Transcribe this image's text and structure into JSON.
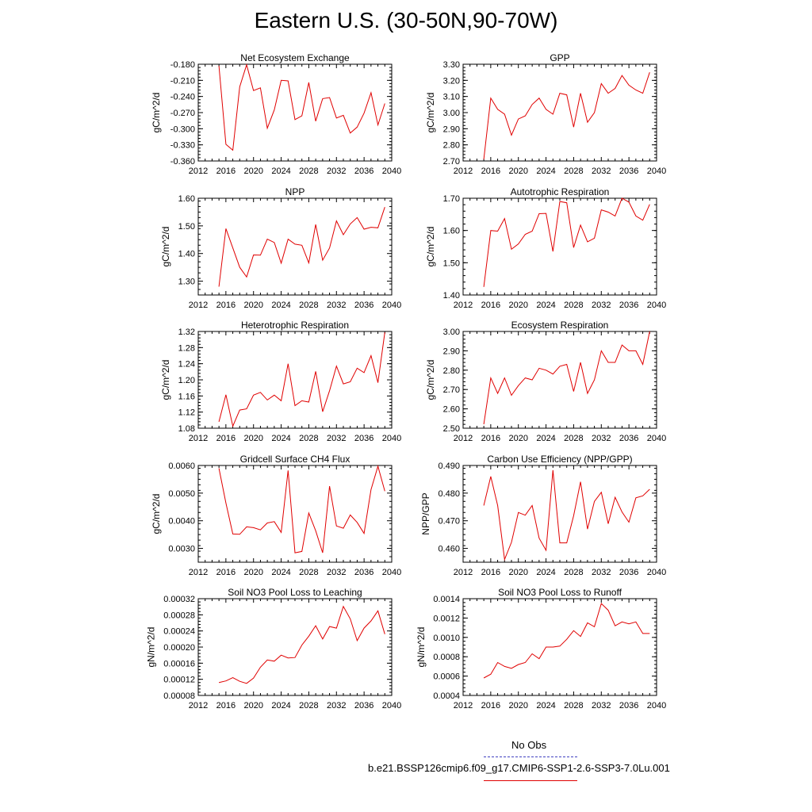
{
  "title": "Eastern U.S. (30-50N,90-70W)",
  "legend": {
    "obs_label": "No Obs",
    "obs_color": "#4040c0",
    "model_label": "b.e21.BSSP126cmip6.f09_g17.CMIP6-SSP1-2.6-SSP3-7.0Lu.001",
    "model_color": "#e00000"
  },
  "chart_data": [
    {
      "type": "line",
      "title": "Net Ecosystem Exchange",
      "ylabel": "gC/m^2/d",
      "xlim": [
        2012,
        2040
      ],
      "xticks": [
        "2012",
        "2016",
        "2020",
        "2024",
        "2028",
        "2032",
        "2036",
        "2040"
      ],
      "ylim": [
        -0.36,
        -0.18
      ],
      "yticks": [
        "-0.180",
        "-0.210",
        "-0.240",
        "-0.270",
        "-0.300",
        "-0.330",
        "-0.360"
      ],
      "series": [
        {
          "color": "#e00000",
          "x": [
            2015,
            2016,
            2017,
            2018,
            2019,
            2020,
            2021,
            2022,
            2023,
            2024,
            2025,
            2026,
            2027,
            2028,
            2029,
            2030,
            2031,
            2032,
            2033,
            2034,
            2035,
            2036,
            2037,
            2038,
            2039
          ],
          "y": [
            -0.183,
            -0.329,
            -0.34,
            -0.222,
            -0.181,
            -0.229,
            -0.224,
            -0.299,
            -0.265,
            -0.21,
            -0.211,
            -0.283,
            -0.276,
            -0.214,
            -0.286,
            -0.244,
            -0.242,
            -0.28,
            -0.275,
            -0.308,
            -0.297,
            -0.271,
            -0.233,
            -0.293,
            -0.253
          ]
        }
      ]
    },
    {
      "type": "line",
      "title": "GPP",
      "ylabel": "gC/m^2/d",
      "xlim": [
        2012,
        2040
      ],
      "xticks": [
        "2012",
        "2016",
        "2020",
        "2024",
        "2028",
        "2032",
        "2036",
        "2040"
      ],
      "ylim": [
        2.7,
        3.3
      ],
      "yticks": [
        "3.30",
        "3.20",
        "3.10",
        "3.00",
        "2.90",
        "2.80",
        "2.70"
      ],
      "series": [
        {
          "color": "#e00000",
          "x": [
            2015,
            2016,
            2017,
            2018,
            2019,
            2020,
            2021,
            2022,
            2023,
            2024,
            2025,
            2026,
            2027,
            2028,
            2029,
            2030,
            2031,
            2032,
            2033,
            2034,
            2035,
            2036,
            2037,
            2038,
            2039
          ],
          "y": [
            2.71,
            3.09,
            3.02,
            2.99,
            2.86,
            2.96,
            2.98,
            3.05,
            3.09,
            3.02,
            2.99,
            3.12,
            3.11,
            2.91,
            3.12,
            2.94,
            3.0,
            3.18,
            3.12,
            3.15,
            3.23,
            3.17,
            3.14,
            3.12,
            3.25
          ]
        }
      ]
    },
    {
      "type": "line",
      "title": "NPP",
      "ylabel": "gC/m^2/d",
      "xlim": [
        2012,
        2040
      ],
      "xticks": [
        "2012",
        "2016",
        "2020",
        "2024",
        "2028",
        "2032",
        "2036",
        "2040"
      ],
      "ylim": [
        1.25,
        1.6
      ],
      "yticks": [
        "1.60",
        "1.50",
        "1.40",
        "1.30"
      ],
      "series": [
        {
          "color": "#e00000",
          "x": [
            2015,
            2016,
            2017,
            2018,
            2019,
            2020,
            2021,
            2022,
            2023,
            2024,
            2025,
            2026,
            2027,
            2028,
            2029,
            2030,
            2031,
            2032,
            2033,
            2034,
            2035,
            2036,
            2037,
            2038,
            2039
          ],
          "y": [
            1.28,
            1.49,
            1.42,
            1.35,
            1.315,
            1.395,
            1.394,
            1.452,
            1.44,
            1.365,
            1.452,
            1.434,
            1.43,
            1.366,
            1.505,
            1.376,
            1.42,
            1.518,
            1.468,
            1.507,
            1.53,
            1.488,
            1.495,
            1.493,
            1.568
          ]
        }
      ]
    },
    {
      "type": "line",
      "title": "Autotrophic Respiration",
      "ylabel": "gC/m^2/d",
      "xlim": [
        2012,
        2040
      ],
      "xticks": [
        "2012",
        "2016",
        "2020",
        "2024",
        "2028",
        "2032",
        "2036",
        "2040"
      ],
      "ylim": [
        1.4,
        1.7
      ],
      "yticks": [
        "1.70",
        "1.60",
        "1.50",
        "1.40"
      ],
      "series": [
        {
          "color": "#e00000",
          "x": [
            2015,
            2016,
            2017,
            2018,
            2019,
            2020,
            2021,
            2022,
            2023,
            2024,
            2025,
            2026,
            2027,
            2028,
            2029,
            2030,
            2031,
            2032,
            2033,
            2034,
            2035,
            2036,
            2037,
            2038,
            2039
          ],
          "y": [
            1.425,
            1.6,
            1.598,
            1.637,
            1.542,
            1.558,
            1.588,
            1.598,
            1.652,
            1.653,
            1.535,
            1.69,
            1.686,
            1.547,
            1.617,
            1.565,
            1.576,
            1.664,
            1.657,
            1.645,
            1.7,
            1.688,
            1.645,
            1.632,
            1.681
          ]
        }
      ]
    },
    {
      "type": "line",
      "title": "Heterotrophic Respiration",
      "ylabel": "gC/m^2/d",
      "xlim": [
        2012,
        2040
      ],
      "xticks": [
        "2012",
        "2016",
        "2020",
        "2024",
        "2028",
        "2032",
        "2036",
        "2040"
      ],
      "ylim": [
        1.08,
        1.32
      ],
      "yticks": [
        "1.32",
        "1.28",
        "1.24",
        "1.20",
        "1.16",
        "1.12",
        "1.08"
      ],
      "series": [
        {
          "color": "#e00000",
          "x": [
            2015,
            2016,
            2017,
            2018,
            2019,
            2020,
            2021,
            2022,
            2023,
            2024,
            2025,
            2026,
            2027,
            2028,
            2029,
            2030,
            2031,
            2032,
            2033,
            2034,
            2035,
            2036,
            2037,
            2038,
            2039
          ],
          "y": [
            1.096,
            1.163,
            1.085,
            1.125,
            1.128,
            1.162,
            1.169,
            1.15,
            1.162,
            1.148,
            1.24,
            1.136,
            1.148,
            1.145,
            1.221,
            1.121,
            1.173,
            1.234,
            1.19,
            1.195,
            1.229,
            1.218,
            1.26,
            1.193,
            1.318
          ]
        }
      ]
    },
    {
      "type": "line",
      "title": "Ecosystem Respiration",
      "ylabel": "gC/m^2/d",
      "xlim": [
        2012,
        2040
      ],
      "xticks": [
        "2012",
        "2016",
        "2020",
        "2024",
        "2028",
        "2032",
        "2036",
        "2040"
      ],
      "ylim": [
        2.5,
        3.0
      ],
      "yticks": [
        "3.00",
        "2.90",
        "2.80",
        "2.70",
        "2.60",
        "2.50"
      ],
      "series": [
        {
          "color": "#e00000",
          "x": [
            2015,
            2016,
            2017,
            2018,
            2019,
            2020,
            2021,
            2022,
            2023,
            2024,
            2025,
            2026,
            2027,
            2028,
            2029,
            2030,
            2031,
            2032,
            2033,
            2034,
            2035,
            2036,
            2037,
            2038,
            2039
          ],
          "y": [
            2.52,
            2.76,
            2.68,
            2.76,
            2.67,
            2.72,
            2.76,
            2.75,
            2.81,
            2.8,
            2.78,
            2.82,
            2.83,
            2.69,
            2.84,
            2.68,
            2.75,
            2.9,
            2.84,
            2.84,
            2.93,
            2.9,
            2.9,
            2.83,
            3.0
          ]
        }
      ]
    },
    {
      "type": "line",
      "title": "Gridcell Surface CH4 Flux",
      "ylabel": "gC/m^2/d",
      "xlim": [
        2012,
        2040
      ],
      "xticks": [
        "2012",
        "2016",
        "2020",
        "2024",
        "2028",
        "2032",
        "2036",
        "2040"
      ],
      "ylim": [
        0.0025,
        0.006
      ],
      "yticks": [
        "0.0060",
        "0.0050",
        "0.0040",
        "0.0030"
      ],
      "series": [
        {
          "color": "#e00000",
          "x": [
            2015,
            2016,
            2017,
            2018,
            2019,
            2020,
            2021,
            2022,
            2023,
            2024,
            2025,
            2026,
            2027,
            2028,
            2029,
            2030,
            2031,
            2032,
            2033,
            2034,
            2035,
            2036,
            2037,
            2038,
            2039
          ],
          "y": [
            0.0059,
            0.00464,
            0.00352,
            0.00351,
            0.00378,
            0.00375,
            0.00367,
            0.00392,
            0.00397,
            0.00358,
            0.00582,
            0.00284,
            0.00289,
            0.00428,
            0.00364,
            0.00284,
            0.00525,
            0.00381,
            0.00373,
            0.00421,
            0.00394,
            0.00354,
            0.00513,
            0.00597,
            0.00507
          ]
        }
      ]
    },
    {
      "type": "line",
      "title": "Carbon Use Efficiency (NPP/GPP)",
      "ylabel": "NPP/GPP",
      "xlim": [
        2012,
        2040
      ],
      "xticks": [
        "2012",
        "2016",
        "2020",
        "2024",
        "2028",
        "2032",
        "2036",
        "2040"
      ],
      "ylim": [
        0.455,
        0.49
      ],
      "yticks": [
        "0.490",
        "0.480",
        "0.470",
        "0.460"
      ],
      "series": [
        {
          "color": "#e00000",
          "x": [
            2015,
            2016,
            2017,
            2018,
            2019,
            2020,
            2021,
            2022,
            2023,
            2024,
            2025,
            2026,
            2027,
            2028,
            2029,
            2030,
            2031,
            2032,
            2033,
            2034,
            2035,
            2036,
            2037,
            2038,
            2039
          ],
          "y": [
            0.4755,
            0.486,
            0.4755,
            0.456,
            0.4622,
            0.473,
            0.472,
            0.4755,
            0.4637,
            0.4593,
            0.4883,
            0.462,
            0.462,
            0.4718,
            0.4841,
            0.467,
            0.477,
            0.4803,
            0.4689,
            0.4785,
            0.4732,
            0.4695,
            0.4783,
            0.479,
            0.4814
          ]
        }
      ]
    },
    {
      "type": "line",
      "title": "Soil NO3 Pool Loss to Leaching",
      "ylabel": "gN/m^2/d",
      "xlim": [
        2012,
        2040
      ],
      "xticks": [
        "2012",
        "2016",
        "2020",
        "2024",
        "2028",
        "2032",
        "2036",
        "2040"
      ],
      "ylim": [
        8e-05,
        0.00032
      ],
      "yticks": [
        "0.00032",
        "0.00028",
        "0.00024",
        "0.00020",
        "0.00016",
        "0.00012",
        "0.00008"
      ],
      "series": [
        {
          "color": "#e00000",
          "x": [
            2015,
            2016,
            2017,
            2018,
            2019,
            2020,
            2021,
            2022,
            2023,
            2024,
            2025,
            2026,
            2027,
            2028,
            2029,
            2030,
            2031,
            2032,
            2033,
            2034,
            2035,
            2036,
            2037,
            2038,
            2039
          ],
          "y": [
            0.000112,
            0.000116,
            0.000124,
            0.000115,
            0.00011,
            0.000123,
            0.00015,
            0.000168,
            0.000165,
            0.00018,
            0.000173,
            0.000174,
            0.000205,
            0.000227,
            0.000253,
            0.00022,
            0.000251,
            0.000247,
            0.000301,
            0.00027,
            0.000216,
            0.000247,
            0.000265,
            0.00029,
            0.000232
          ]
        }
      ]
    },
    {
      "type": "line",
      "title": "Soil NO3 Pool Loss to Runoff",
      "ylabel": "gN/m^2/d",
      "xlim": [
        2012,
        2040
      ],
      "xticks": [
        "2012",
        "2016",
        "2020",
        "2024",
        "2028",
        "2032",
        "2036",
        "2040"
      ],
      "ylim": [
        0.0004,
        0.0014
      ],
      "yticks": [
        "0.0014",
        "0.0012",
        "0.0010",
        "0.0008",
        "0.0006",
        "0.0004"
      ],
      "series": [
        {
          "color": "#e00000",
          "x": [
            2015,
            2016,
            2017,
            2018,
            2019,
            2020,
            2021,
            2022,
            2023,
            2024,
            2025,
            2026,
            2027,
            2028,
            2029,
            2030,
            2031,
            2032,
            2033,
            2034,
            2035,
            2036,
            2037,
            2038,
            2039
          ],
          "y": [
            0.00058,
            0.00062,
            0.00074,
            0.0007,
            0.00068,
            0.00072,
            0.00074,
            0.00083,
            0.00078,
            0.0009,
            0.0009,
            0.00091,
            0.00098,
            0.00107,
            0.00101,
            0.00115,
            0.00111,
            0.00135,
            0.00128,
            0.00112,
            0.00116,
            0.00114,
            0.00116,
            0.00104,
            0.00104
          ]
        }
      ]
    }
  ]
}
